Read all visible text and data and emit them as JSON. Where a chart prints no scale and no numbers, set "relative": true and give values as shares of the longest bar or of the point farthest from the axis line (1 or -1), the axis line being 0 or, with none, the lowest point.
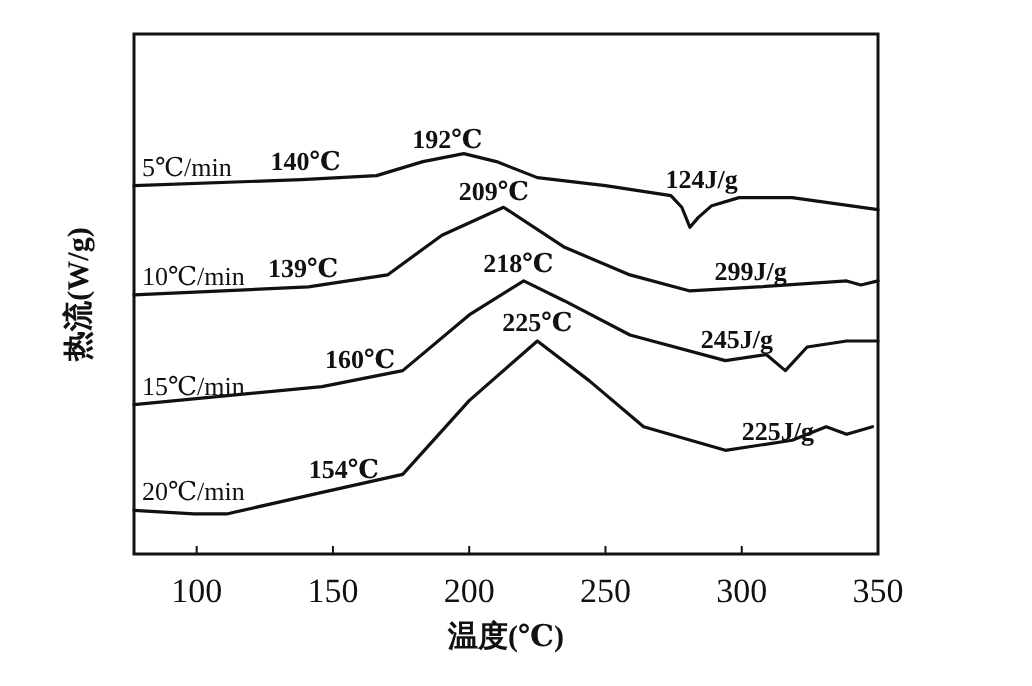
{
  "chart_data": {
    "type": "line",
    "relative": true,
    "xlabel": "温度(℃)",
    "ylabel": "热流(W/g)",
    "xlim": [
      77,
      350
    ],
    "xticks": [
      100,
      150,
      200,
      250,
      300,
      350
    ],
    "grid": false,
    "legend": false,
    "marker": "none",
    "line_style": "solid",
    "series": [
      {
        "name": "5℃/min",
        "color": "#111111",
        "x": [
          77,
          138.5,
          166,
          183,
          198,
          210,
          225,
          250,
          274,
          278,
          281,
          284,
          289,
          299,
          318.5,
          350
        ],
        "values": [
          0.92,
          0.935,
          0.945,
          0.98,
          1.0,
          0.98,
          0.94,
          0.92,
          0.895,
          0.866,
          0.816,
          0.84,
          0.87,
          0.89,
          0.89,
          0.86
        ]
      },
      {
        "name": "10℃/min",
        "color": "#111111",
        "x": [
          77,
          141,
          170,
          190,
          212.6,
          235,
          259,
          281,
          306,
          338.5,
          343.7,
          350
        ],
        "values": [
          0.647,
          0.667,
          0.697,
          0.796,
          0.866,
          0.766,
          0.697,
          0.657,
          0.667,
          0.682,
          0.672,
          0.682
        ]
      },
      {
        "name": "15℃/min",
        "color": "#111111",
        "x": [
          77,
          146,
          175.6,
          200,
          220,
          235,
          259,
          294,
          309,
          316,
          324,
          338.5,
          350
        ],
        "values": [
          0.373,
          0.418,
          0.458,
          0.597,
          0.682,
          0.632,
          0.547,
          0.483,
          0.498,
          0.458,
          0.517,
          0.532,
          0.532
        ]
      },
      {
        "name": "20℃/min",
        "color": "#111111",
        "x": [
          77,
          99,
          111,
          146,
          175.6,
          200,
          225,
          244,
          264,
          294,
          318.5,
          331,
          338.5,
          348
        ],
        "values": [
          0.109,
          0.1,
          0.1,
          0.154,
          0.199,
          0.383,
          0.532,
          0.433,
          0.318,
          0.259,
          0.284,
          0.318,
          0.299,
          0.318
        ]
      }
    ],
    "annotations": [
      {
        "text": "140℃",
        "x": 140,
        "y": 0.935
      },
      {
        "text": "192℃",
        "x": 192,
        "y": 0.99
      },
      {
        "text": "124J/g",
        "x": 272,
        "y": 0.89
      },
      {
        "text": "139℃",
        "x": 139,
        "y": 0.667
      },
      {
        "text": "209℃",
        "x": 209,
        "y": 0.86
      },
      {
        "text": "299J/g",
        "x": 290,
        "y": 0.66
      },
      {
        "text": "160℃",
        "x": 160,
        "y": 0.44
      },
      {
        "text": "218℃",
        "x": 218,
        "y": 0.68
      },
      {
        "text": "245J/g",
        "x": 285,
        "y": 0.49
      },
      {
        "text": "154℃",
        "x": 154,
        "y": 0.165
      },
      {
        "text": "225℃",
        "x": 225,
        "y": 0.532
      },
      {
        "text": "225J/g",
        "x": 300,
        "y": 0.26
      }
    ]
  }
}
